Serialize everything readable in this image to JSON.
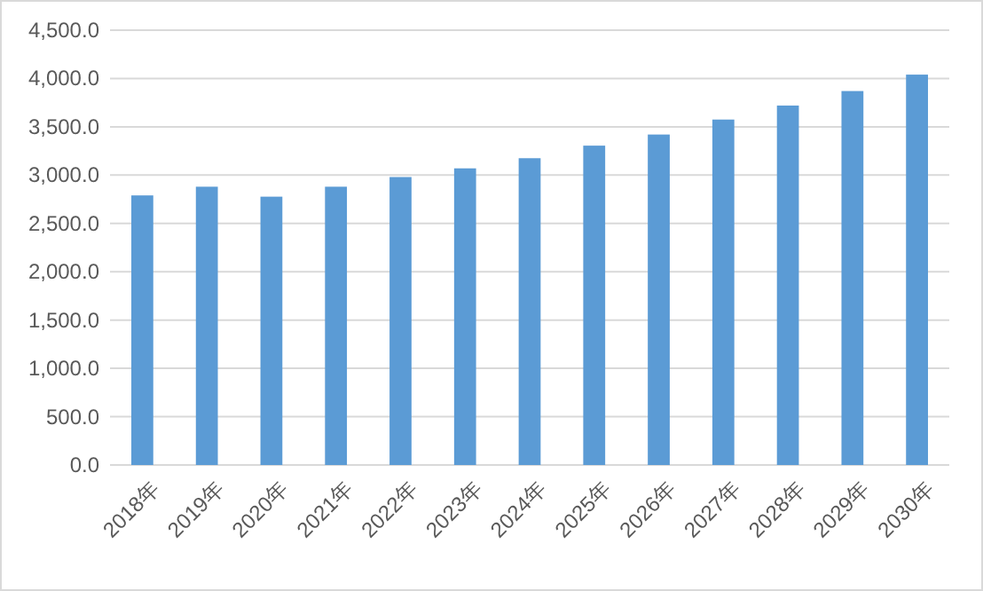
{
  "chart_data": {
    "type": "bar",
    "categories": [
      "2018年",
      "2019年",
      "2020年",
      "2021年",
      "2022年",
      "2023年",
      "2024年",
      "2025年",
      "2026年",
      "2027年",
      "2028年",
      "2029年",
      "2030年"
    ],
    "values": [
      2790,
      2880,
      2777,
      2880,
      2980,
      3070,
      3175,
      3305,
      3420,
      3575,
      3720,
      3870,
      4040
    ],
    "color": "#5b9bd5",
    "ylim": [
      0,
      4500
    ],
    "yticks": [
      {
        "value": 0,
        "label": "0.0"
      },
      {
        "value": 500,
        "label": "500.0"
      },
      {
        "value": 1000,
        "label": "1,000.0"
      },
      {
        "value": 1500,
        "label": "1,500.0"
      },
      {
        "value": 2000,
        "label": "2,000.0"
      },
      {
        "value": 2500,
        "label": "2,500.0"
      },
      {
        "value": 3000,
        "label": "3,000.0"
      },
      {
        "value": 3500,
        "label": "3,500.0"
      },
      {
        "value": 4000,
        "label": "4,000.0"
      },
      {
        "value": 4500,
        "label": "4,500.0"
      }
    ],
    "grid": "y"
  }
}
